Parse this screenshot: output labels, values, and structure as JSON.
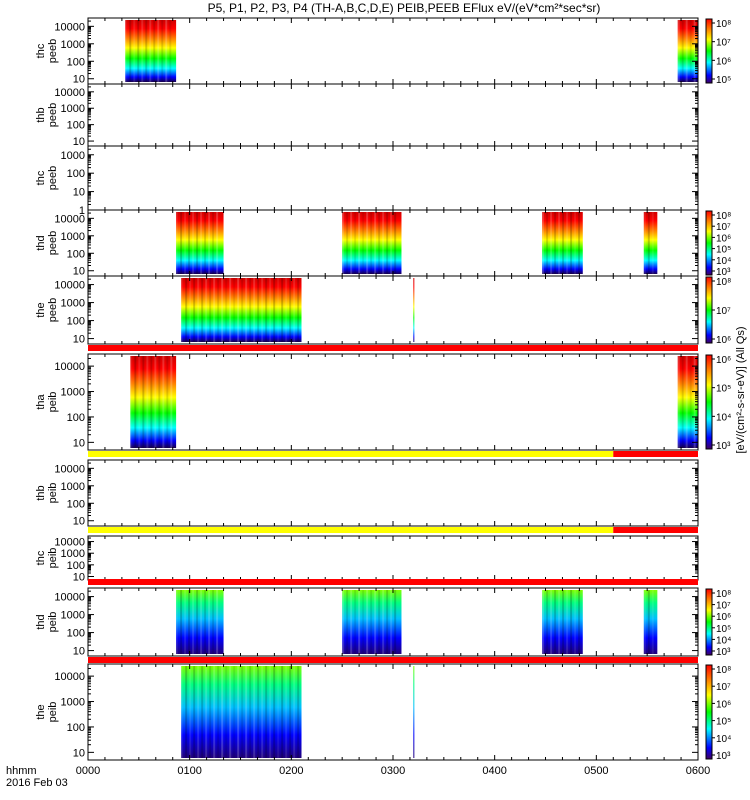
{
  "title": "P5, P1, P2, P3, P4 (TH-A,B,C,D,E) PEIB,PEEB EFlux eV/(eV*cm²*sec*sr)",
  "footer": {
    "label": "hhmm",
    "date": "2016 Feb 03"
  },
  "colorbar_label": "[eV/(cm²-s-sr-eV)] (All Qs)",
  "colors": {
    "spectrogram_scale": [
      "#800080",
      "#0000ff",
      "#00ffff",
      "#00ff00",
      "#ffff00",
      "#ff8000",
      "#ff0000",
      "#c00000"
    ],
    "flag_red": "#ff0000",
    "flag_yellow": "#ffff00"
  },
  "chart_data": {
    "type": "heatmap",
    "xlabel": "hhmm",
    "x_range_hhmm": [
      "0000",
      "0600"
    ],
    "x_ticks": [
      "0000",
      "0100",
      "0200",
      "0300",
      "0400",
      "0500",
      "0600"
    ],
    "panels": [
      {
        "ylabel": [
          "thc",
          "peeb"
        ],
        "y_ticks": [
          "10000",
          "1000",
          "100",
          "10"
        ],
        "y_range_eV": [
          5,
          30000
        ],
        "cbar_ticks": [
          "10⁸",
          "10⁷",
          "10⁶",
          "10⁵"
        ],
        "cbar_range_exp": [
          4.5,
          8.2
        ],
        "intervals": [
          [
            "0022",
            "0052"
          ],
          [
            "0548",
            "0600"
          ]
        ],
        "flag": null
      },
      {
        "ylabel": [
          "thb",
          "peeb"
        ],
        "y_ticks": [
          "10000",
          "1000",
          "100",
          "10"
        ],
        "y_range_eV": [
          5,
          30000
        ],
        "cbar_ticks": [],
        "intervals": [],
        "flag": null
      },
      {
        "ylabel": [
          "thc",
          "peeb"
        ],
        "y_ticks": [
          "1000",
          "100",
          "10",
          "1"
        ],
        "y_range_eV": [
          1,
          3000
        ],
        "cbar_ticks": [],
        "intervals": [],
        "flag": null
      },
      {
        "ylabel": [
          "thd",
          "peeb"
        ],
        "y_ticks": [
          "10000",
          "1000",
          "100",
          "10"
        ],
        "y_range_eV": [
          5,
          30000
        ],
        "cbar_ticks": [
          "10⁸",
          "10⁷",
          "10⁶",
          "10⁵",
          "10⁴",
          "10³"
        ],
        "cbar_range_exp": [
          2.8,
          8.2
        ],
        "intervals": [
          [
            "0052",
            "0080"
          ],
          [
            "0190",
            "0265"
          ],
          [
            "0428",
            "0452"
          ],
          [
            "0488",
            "0536"
          ]
        ],
        "flag": null
      },
      {
        "ylabel": [
          "the",
          "peeb"
        ],
        "y_ticks": [
          "10000",
          "1000",
          "100",
          "10"
        ],
        "y_range_eV": [
          5,
          30000
        ],
        "cbar_ticks": [
          "10⁸",
          "10⁷",
          "10⁶"
        ],
        "cbar_range_exp": [
          5.5,
          8.2
        ],
        "intervals": [
          [
            "0055",
            "0166"
          ],
          [
            "0272",
            "0300"
          ]
        ],
        "flag": {
          "segments": [
            [
              "0000",
              "0600",
              "red"
            ]
          ]
        }
      },
      {
        "ylabel": [
          "tha",
          "peib"
        ],
        "y_ticks": [
          "10000",
          "1000",
          "100",
          "10"
        ],
        "y_range_eV": [
          5,
          30000
        ],
        "cbar_ticks": [
          "10⁶",
          "10⁵",
          "10⁴",
          "10³"
        ],
        "cbar_range_exp": [
          2.8,
          6.3
        ],
        "intervals": [
          [
            "0025",
            "0052"
          ],
          [
            "0548",
            "0600"
          ]
        ],
        "flag": {
          "segments": [
            [
              "0000",
              "0510",
              "yellow"
            ],
            [
              "0510",
              "0600",
              "red"
            ]
          ]
        }
      },
      {
        "ylabel": [
          "thb",
          "peib"
        ],
        "y_ticks": [
          "10000",
          "1000",
          "100",
          "10"
        ],
        "y_range_eV": [
          5,
          30000
        ],
        "cbar_ticks": [],
        "intervals": [],
        "flag": {
          "segments": [
            [
              "0000",
              "0510",
              "yellow"
            ],
            [
              "0510",
              "0600",
              "red"
            ]
          ]
        }
      },
      {
        "ylabel": [
          "thc",
          "peib"
        ],
        "y_ticks": [
          "10000",
          "1000",
          "100",
          "10"
        ],
        "y_range_eV": [
          5,
          30000
        ],
        "cbar_ticks": [],
        "intervals": [],
        "flag": {
          "segments": [
            [
              "0000",
              "0600",
              "red"
            ]
          ]
        }
      },
      {
        "ylabel": [
          "thd",
          "peib"
        ],
        "y_ticks": [
          "10000",
          "1000",
          "100",
          "10"
        ],
        "y_range_eV": [
          5,
          30000
        ],
        "cbar_ticks": [
          "10⁸",
          "10⁷",
          "10⁶",
          "10⁵",
          "10⁴",
          "10³"
        ],
        "cbar_range_exp": [
          2.8,
          8.2
        ],
        "intervals": [
          [
            "0052",
            "0080"
          ],
          [
            "0190",
            "0265"
          ],
          [
            "0428",
            "0452"
          ],
          [
            "0488",
            "0536"
          ]
        ],
        "flag": {
          "segments": [
            [
              "0000",
              "0600",
              "red"
            ]
          ]
        }
      },
      {
        "ylabel": [
          "the",
          "peib"
        ],
        "y_ticks": [
          "10000",
          "1000",
          "100",
          "10"
        ],
        "y_range_eV": [
          5,
          30000
        ],
        "cbar_ticks": [
          "10⁸",
          "10⁷",
          "10⁶",
          "10⁵",
          "10⁴",
          "10³"
        ],
        "cbar_range_exp": [
          2.8,
          8.2
        ],
        "intervals": [
          [
            "0055",
            "0166"
          ],
          [
            "0272",
            "0300"
          ]
        ],
        "flag": null
      }
    ]
  }
}
